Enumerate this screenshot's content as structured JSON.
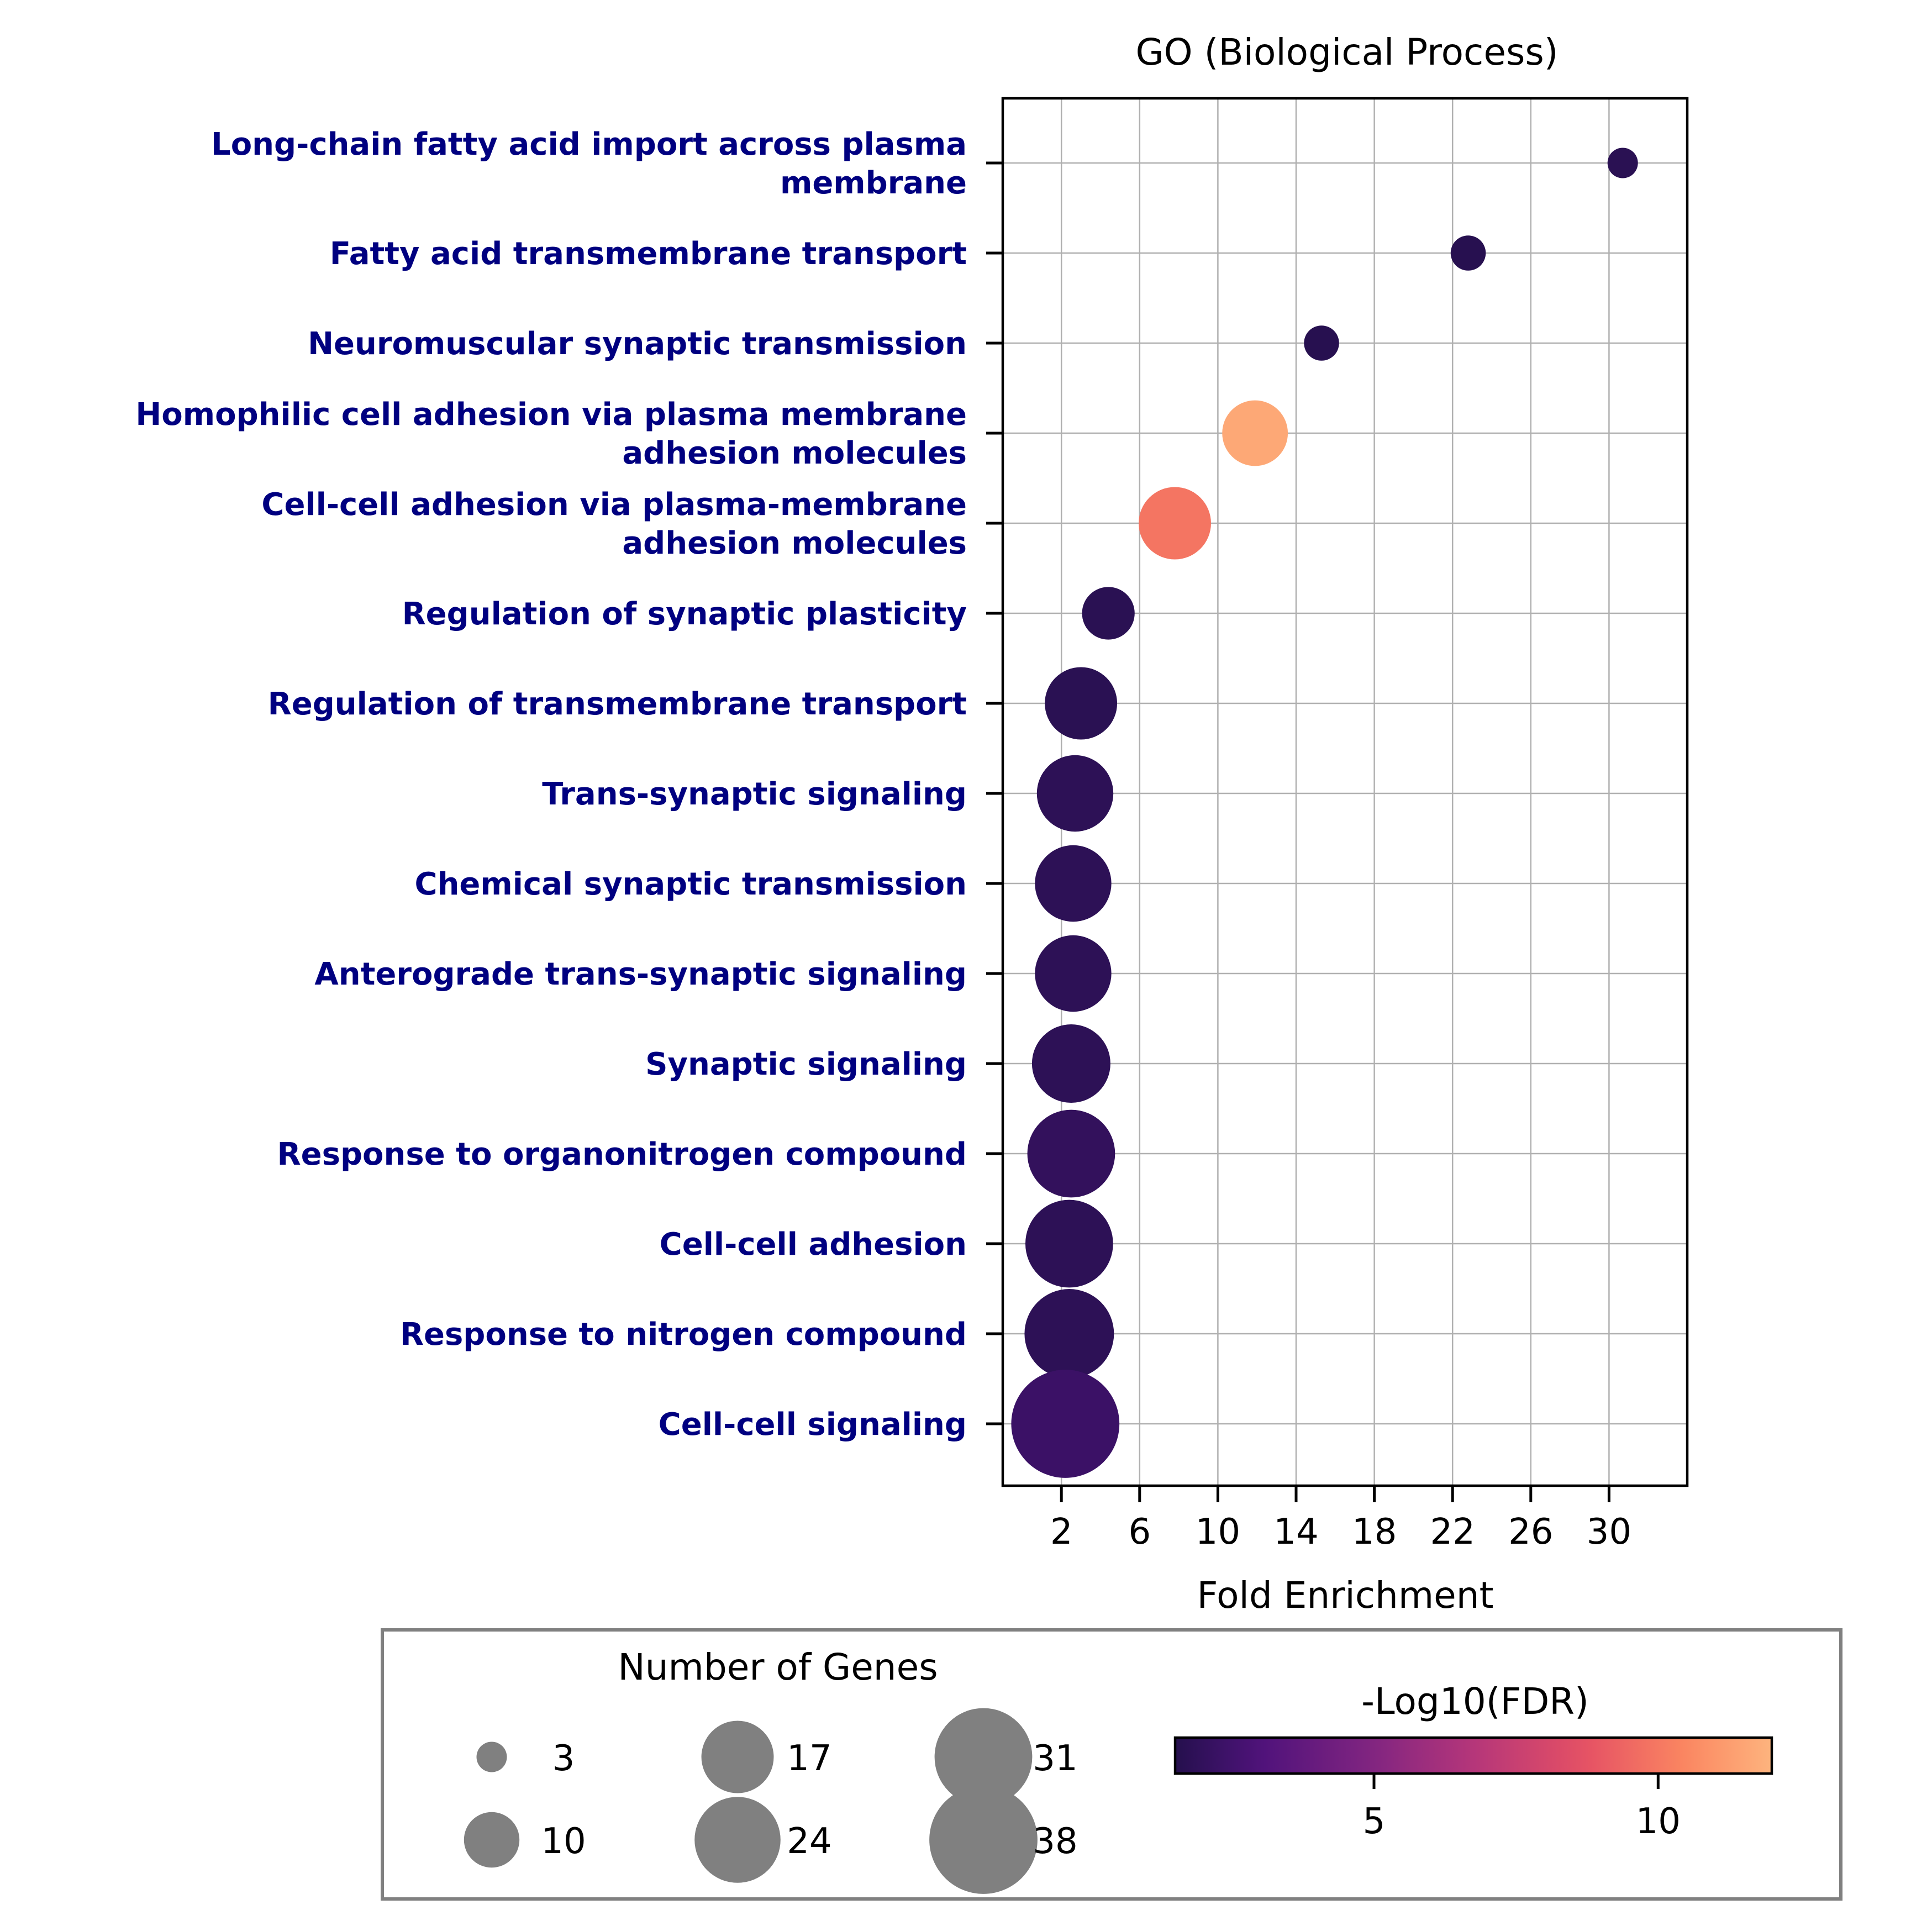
{
  "chart_data": {
    "type": "scatter",
    "title": "GO (Biological Process)",
    "xlabel": "Fold Enrichment",
    "ylabel": "",
    "xlim": [
      -1.0,
      34.0
    ],
    "x_ticks": [
      2,
      6,
      10,
      14,
      18,
      22,
      26,
      30
    ],
    "grid": true,
    "terms": [
      {
        "label": [
          "Long-chain fatty acid import across plasma",
          "membrane"
        ],
        "fold": 30.7,
        "genes": 3,
        "neglog10fdr": 1.7
      },
      {
        "label": [
          "Fatty acid transmembrane transport"
        ],
        "fold": 22.8,
        "genes": 4,
        "neglog10fdr": 1.6
      },
      {
        "label": [
          "Neuromuscular synaptic transmission"
        ],
        "fold": 15.3,
        "genes": 4,
        "neglog10fdr": 1.6
      },
      {
        "label": [
          "Homophilic cell adhesion via plasma membrane",
          "adhesion molecules"
        ],
        "fold": 11.9,
        "genes": 14,
        "neglog10fdr": 11.6
      },
      {
        "label": [
          "Cell-cell adhesion via plasma-membrane",
          "adhesion molecules"
        ],
        "fold": 7.8,
        "genes": 17,
        "neglog10fdr": 9.9
      },
      {
        "label": [
          "Regulation of synaptic plasticity"
        ],
        "fold": 4.4,
        "genes": 9,
        "neglog10fdr": 1.7
      },
      {
        "label": [
          "Regulation of transmembrane transport"
        ],
        "fold": 3.0,
        "genes": 17,
        "neglog10fdr": 1.7
      },
      {
        "label": [
          "Trans-synaptic signaling"
        ],
        "fold": 2.7,
        "genes": 19,
        "neglog10fdr": 1.8
      },
      {
        "label": [
          "Chemical synaptic transmission"
        ],
        "fold": 2.6,
        "genes": 19,
        "neglog10fdr": 1.8
      },
      {
        "label": [
          "Anterograde trans-synaptic signaling"
        ],
        "fold": 2.6,
        "genes": 19,
        "neglog10fdr": 1.8
      },
      {
        "label": [
          "Synaptic signaling"
        ],
        "fold": 2.5,
        "genes": 20,
        "neglog10fdr": 1.8
      },
      {
        "label": [
          "Response to organonitrogen compound"
        ],
        "fold": 2.5,
        "genes": 25,
        "neglog10fdr": 2.0
      },
      {
        "label": [
          "Cell-cell adhesion"
        ],
        "fold": 2.4,
        "genes": 25,
        "neglog10fdr": 1.8
      },
      {
        "label": [
          "Response to nitrogen compound"
        ],
        "fold": 2.4,
        "genes": 26,
        "neglog10fdr": 1.8
      },
      {
        "label": [
          "Cell-cell signaling"
        ],
        "fold": 2.2,
        "genes": 38,
        "neglog10fdr": 2.3
      }
    ],
    "size_legend": {
      "title": "Number of Genes",
      "values": [
        3,
        10,
        17,
        24,
        31,
        38
      ]
    },
    "colorbar": {
      "title": "-Log10(FDR)",
      "colormap": "magma",
      "range": [
        1.5,
        12.0
      ],
      "ticks": [
        5,
        10
      ]
    },
    "label_color": "#000080"
  }
}
